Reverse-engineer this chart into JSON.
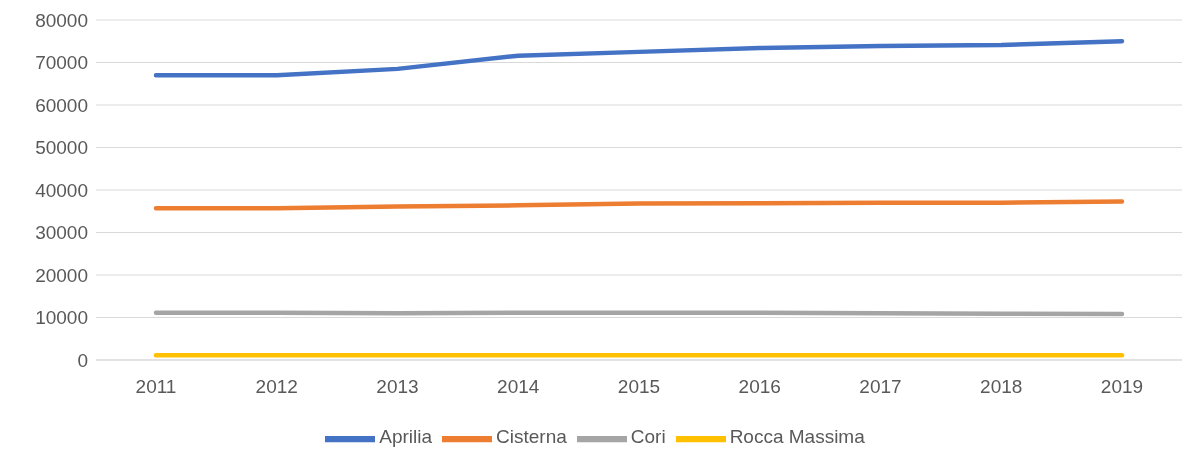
{
  "chart_data": {
    "type": "line",
    "categories": [
      "2011",
      "2012",
      "2013",
      "2014",
      "2015",
      "2016",
      "2017",
      "2018",
      "2019"
    ],
    "series": [
      {
        "name": "Aprilia",
        "color": "#4472c4",
        "values": [
          67000,
          67000,
          68500,
          71600,
          72500,
          73400,
          73900,
          74100,
          75000
        ]
      },
      {
        "name": "Cisterna",
        "color": "#ed7d31",
        "values": [
          35700,
          35700,
          36100,
          36400,
          36800,
          36900,
          37000,
          37000,
          37300
        ]
      },
      {
        "name": "Cori",
        "color": "#a5a5a5",
        "values": [
          11100,
          11100,
          11000,
          11100,
          11100,
          11100,
          11000,
          10900,
          10800
        ]
      },
      {
        "name": "Rocca Massima",
        "color": "#ffc000",
        "values": [
          1100,
          1100,
          1100,
          1100,
          1100,
          1100,
          1100,
          1100,
          1100
        ]
      }
    ],
    "ylim": [
      0,
      80000
    ],
    "yticks": [
      0,
      10000,
      20000,
      30000,
      40000,
      50000,
      60000,
      70000,
      80000
    ],
    "grid": "y",
    "legend": "bottom",
    "marker": "none",
    "line_style": "solid"
  }
}
